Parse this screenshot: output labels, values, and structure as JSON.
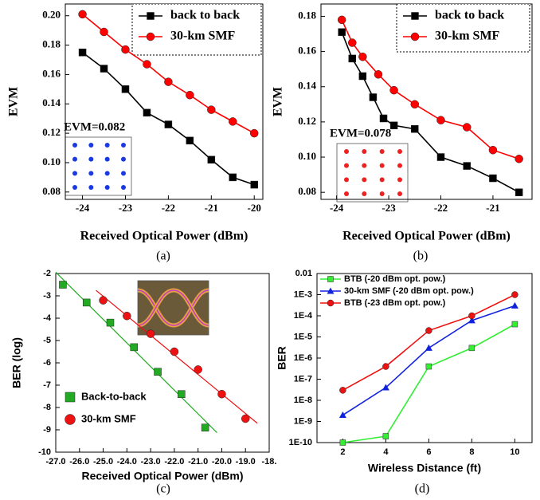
{
  "chart_data": [
    {
      "type": "line",
      "panel_label": "(a)",
      "x_label": "Received Optical Power (dBm)",
      "y_label": "EVM",
      "annotation": "EVM=0.082",
      "xlim": [
        -24.4,
        -19.8
      ],
      "xticks": [
        -24,
        -23,
        -22,
        -21,
        -20
      ],
      "ylim": [
        0.075,
        0.208
      ],
      "yticks": [
        0.08,
        {
          "value": 0.1,
          "label": "0.10"
        },
        0.12,
        0.14,
        0.16,
        0.18,
        {
          "value": 0.2,
          "label": "0.20"
        }
      ],
      "legend": "upper right",
      "series": [
        {
          "name": "back to back",
          "color": "#000000",
          "marker": "square",
          "x": [
            -24,
            -23.5,
            -23,
            -22.5,
            -22,
            -21.5,
            -21,
            -20.5,
            -20
          ],
          "values": [
            0.175,
            0.164,
            0.15,
            0.134,
            0.126,
            0.115,
            0.102,
            0.09,
            0.085
          ]
        },
        {
          "name": "30-km SMF",
          "color": "#ff0000",
          "marker": "circle",
          "x": [
            -24,
            -23.5,
            -23,
            -22.5,
            -22,
            -21.5,
            -21,
            -20.5,
            -20
          ],
          "values": [
            0.201,
            0.189,
            0.177,
            0.167,
            0.155,
            0.146,
            0.136,
            0.128,
            0.12
          ]
        }
      ]
    },
    {
      "type": "line",
      "panel_label": "(b)",
      "x_label": "Received Optical Power (dBm)",
      "y_label": "EVM",
      "annotation": "EVM=0.078",
      "xlim": [
        -24.3,
        -20.25
      ],
      "xticks": [
        -24,
        -23,
        -22,
        -21
      ],
      "ylim": [
        0.076,
        0.187
      ],
      "yticks": [
        0.08,
        {
          "value": 0.1,
          "label": "0.10"
        },
        0.12,
        0.14,
        0.16,
        0.18
      ],
      "legend": "upper right",
      "series": [
        {
          "name": "back to back",
          "color": "#000000",
          "marker": "square",
          "x": [
            -23.9,
            -23.7,
            -23.5,
            -23.3,
            -23.1,
            -22.9,
            -22.5,
            -22,
            -21.5,
            -21,
            -20.5
          ],
          "values": [
            0.171,
            0.156,
            0.146,
            0.134,
            0.122,
            0.118,
            0.116,
            0.1,
            0.095,
            0.088,
            0.08
          ]
        },
        {
          "name": "30-km SMF",
          "color": "#ff0000",
          "marker": "circle",
          "x": [
            -23.9,
            -23.7,
            -23.5,
            -23.2,
            -22.9,
            -22.5,
            -22,
            -21.5,
            -21,
            -20.5
          ],
          "values": [
            0.178,
            0.165,
            0.157,
            0.147,
            0.138,
            0.13,
            0.121,
            0.117,
            0.104,
            0.099
          ]
        }
      ]
    },
    {
      "type": "scatter",
      "panel_label": "(c)",
      "x_label": "Received Optical Power (dBm)",
      "y_label": "BER (log)",
      "xlim": [
        -27,
        -18
      ],
      "xticks": [
        {
          "value": -27,
          "label": "-27.0"
        },
        {
          "value": -26,
          "label": "-26.0"
        },
        {
          "value": -25,
          "label": "-25.0"
        },
        {
          "value": -24,
          "label": "-24.0"
        },
        {
          "value": -23,
          "label": "-23.0"
        },
        {
          "value": -22,
          "label": "-22.0"
        },
        {
          "value": -21,
          "label": "-21.0"
        },
        {
          "value": -20,
          "label": "-20.0"
        },
        {
          "value": -19,
          "label": "-19.0"
        },
        {
          "value": -18,
          "label": "-18."
        }
      ],
      "ylim": [
        -10,
        -2
      ],
      "yticks": [
        -2,
        -3,
        -4,
        -5,
        -6,
        -7,
        -8,
        -9,
        -10
      ],
      "legend": "lower left",
      "fit_lines": true,
      "series": [
        {
          "name": "Back-to-back",
          "color": "#22aa22",
          "marker": "square",
          "x": [
            -26.7,
            -25.7,
            -24.7,
            -23.7,
            -22.7,
            -21.7,
            -20.7
          ],
          "values": [
            -2.5,
            -3.3,
            -4.2,
            -5.3,
            -6.4,
            -7.4,
            -8.9
          ]
        },
        {
          "name": "30-km SMF",
          "color": "#ee1111",
          "marker": "circle",
          "x": [
            -25,
            -24,
            -23,
            -22,
            -21,
            -20,
            -19
          ],
          "values": [
            -3.2,
            -3.9,
            -4.7,
            -5.5,
            -6.3,
            -7.4,
            -8.5
          ]
        }
      ]
    },
    {
      "type": "line",
      "panel_label": "(d)",
      "x_label": "Wireless Distance (ft)",
      "y_label": "BER",
      "log_y": true,
      "xlim": [
        0.8,
        10.8
      ],
      "xticks": [
        2,
        4,
        6,
        8,
        10
      ],
      "ylim": [
        1e-10,
        0.01
      ],
      "yticks": [
        0.01,
        {
          "value": 0.001,
          "label": "1E-3"
        },
        {
          "value": 0.0001,
          "label": "1E-4"
        },
        {
          "value": 1e-05,
          "label": "1E-5"
        },
        {
          "value": 1e-06,
          "label": "1E-6"
        },
        {
          "value": 1e-07,
          "label": "1E-7"
        },
        {
          "value": 1e-08,
          "label": "1E-8"
        },
        {
          "value": 1e-09,
          "label": "1E-9"
        },
        {
          "value": 1e-10,
          "label": "1E-10"
        }
      ],
      "legend": "upper left",
      "series": [
        {
          "name": "BTB (-20 dBm opt. pow.)",
          "color": "#33ee33",
          "marker": "square",
          "x": [
            2,
            4,
            6,
            8,
            10
          ],
          "values": [
            1e-10,
            2e-10,
            4e-07,
            3e-06,
            4e-05
          ]
        },
        {
          "name": "30-km SMF (-20 dBm opt. pow.)",
          "color": "#1122dd",
          "marker": "triangle",
          "x": [
            2,
            4,
            6,
            8,
            10
          ],
          "values": [
            2e-09,
            4e-08,
            3e-06,
            6e-05,
            0.0003
          ]
        },
        {
          "name": "BTB (-23 dBm opt. pow.)",
          "color": "#ee1111",
          "marker": "circle",
          "x": [
            2,
            4,
            6,
            8,
            10
          ],
          "values": [
            3e-08,
            4e-07,
            2e-05,
            0.0001,
            0.001
          ]
        }
      ]
    }
  ]
}
